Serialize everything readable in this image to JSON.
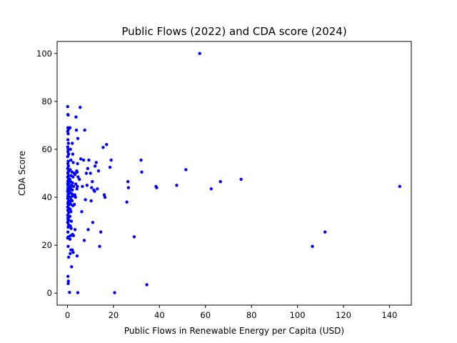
{
  "chart_data": {
    "type": "scatter",
    "title": "Public Flows (2022) and CDA score (2024)",
    "xlabel": "Public Flows in Renewable Energy per Capita (USD)",
    "ylabel": "CDA Score",
    "xlim": [
      -4.5,
      149.5
    ],
    "ylim": [
      -5,
      105
    ],
    "xticks": [
      0,
      20,
      40,
      60,
      80,
      100,
      120,
      140
    ],
    "yticks": [
      0,
      20,
      40,
      60,
      80,
      100
    ],
    "grid": false,
    "marker_color": "#0000ff",
    "points": [
      [
        0.1,
        77.8
      ],
      [
        0.2,
        74.5
      ],
      [
        0.3,
        74.3
      ],
      [
        0.2,
        69.0
      ],
      [
        0.4,
        68.2
      ],
      [
        0.1,
        67.5
      ],
      [
        0.3,
        66.5
      ],
      [
        0.2,
        64.0
      ],
      [
        0.4,
        62.5
      ],
      [
        0.1,
        61.0
      ],
      [
        0.3,
        60.0
      ],
      [
        0.2,
        59.0
      ],
      [
        0.5,
        58.0
      ],
      [
        0.1,
        57.0
      ],
      [
        0.3,
        55.0
      ],
      [
        0.2,
        54.0
      ],
      [
        0.4,
        53.0
      ],
      [
        0.1,
        52.0
      ],
      [
        0.6,
        51.0
      ],
      [
        0.3,
        50.5
      ],
      [
        0.2,
        50.0
      ],
      [
        0.5,
        49.0
      ],
      [
        0.1,
        48.5
      ],
      [
        0.4,
        48.0
      ],
      [
        0.3,
        47.0
      ],
      [
        0.2,
        46.5
      ],
      [
        0.6,
        46.0
      ],
      [
        0.1,
        45.5
      ],
      [
        0.4,
        45.0
      ],
      [
        0.3,
        44.5
      ],
      [
        0.5,
        44.0
      ],
      [
        0.2,
        43.5
      ],
      [
        0.7,
        43.0
      ],
      [
        0.1,
        42.5
      ],
      [
        0.3,
        41.5
      ],
      [
        0.4,
        41.0
      ],
      [
        0.2,
        40.5
      ],
      [
        0.6,
        40.0
      ],
      [
        0.1,
        39.5
      ],
      [
        0.5,
        38.5
      ],
      [
        0.3,
        38.0
      ],
      [
        0.2,
        37.5
      ],
      [
        0.4,
        37.0
      ],
      [
        0.1,
        36.0
      ],
      [
        0.6,
        35.5
      ],
      [
        0.3,
        35.0
      ],
      [
        0.2,
        34.5
      ],
      [
        0.5,
        33.5
      ],
      [
        0.1,
        32.5
      ],
      [
        0.4,
        32.0
      ],
      [
        0.3,
        31.5
      ],
      [
        0.2,
        31.0
      ],
      [
        0.6,
        30.5
      ],
      [
        0.1,
        29.5
      ],
      [
        0.5,
        28.5
      ],
      [
        0.3,
        27.5
      ],
      [
        0.2,
        25.5
      ],
      [
        0.4,
        23.5
      ],
      [
        0.1,
        23.0
      ],
      [
        0.3,
        19.5
      ],
      [
        0.5,
        15.0
      ],
      [
        0.2,
        7.0
      ],
      [
        0.4,
        5.0
      ],
      [
        0.3,
        4.0
      ],
      [
        0.9,
        0.3
      ],
      [
        0.3,
        30.0
      ],
      [
        1.1,
        69.0
      ],
      [
        1.3,
        60.0
      ],
      [
        1.5,
        55.5
      ],
      [
        1.2,
        51.5
      ],
      [
        1.6,
        49.0
      ],
      [
        1.0,
        47.5
      ],
      [
        1.4,
        46.5
      ],
      [
        1.7,
        45.0
      ],
      [
        1.2,
        44.0
      ],
      [
        1.5,
        43.5
      ],
      [
        1.1,
        42.0
      ],
      [
        1.8,
        41.5
      ],
      [
        1.3,
        40.0
      ],
      [
        1.6,
        39.0
      ],
      [
        1.0,
        38.0
      ],
      [
        1.4,
        37.0
      ],
      [
        1.2,
        35.0
      ],
      [
        1.5,
        34.0
      ],
      [
        1.1,
        32.0
      ],
      [
        1.7,
        30.0
      ],
      [
        1.3,
        28.0
      ],
      [
        1.6,
        27.0
      ],
      [
        1.4,
        24.0
      ],
      [
        1.1,
        22.5
      ],
      [
        1.5,
        18.0
      ],
      [
        1.2,
        16.5
      ],
      [
        1.8,
        11.0
      ],
      [
        2.1,
        62.5
      ],
      [
        2.3,
        58.0
      ],
      [
        2.5,
        54.5
      ],
      [
        2.0,
        50.5
      ],
      [
        2.4,
        48.5
      ],
      [
        2.2,
        46.0
      ],
      [
        2.6,
        44.5
      ],
      [
        2.1,
        43.0
      ],
      [
        2.5,
        41.0
      ],
      [
        2.3,
        40.5
      ],
      [
        2.0,
        38.5
      ],
      [
        2.4,
        36.5
      ],
      [
        2.2,
        24.5
      ],
      [
        2.6,
        24.0
      ],
      [
        2.1,
        18.0
      ],
      [
        2.5,
        17.0
      ],
      [
        3.0,
        50.0
      ],
      [
        3.3,
        49.5
      ],
      [
        3.6,
        45.5
      ],
      [
        3.2,
        41.0
      ],
      [
        3.5,
        40.0
      ],
      [
        3.0,
        37.0
      ],
      [
        3.3,
        26.5
      ],
      [
        3.7,
        73.5
      ],
      [
        3.9,
        68.0
      ],
      [
        4.0,
        51.0
      ],
      [
        4.2,
        50.5
      ],
      [
        4.3,
        44.5
      ],
      [
        4.1,
        43.5
      ],
      [
        4.5,
        64.5
      ],
      [
        4.4,
        54.0
      ],
      [
        4.6,
        48.5
      ],
      [
        4.2,
        15.5
      ],
      [
        4.5,
        0.2
      ],
      [
        5.5,
        77.5
      ],
      [
        5.2,
        47.5
      ],
      [
        5.8,
        56.0
      ],
      [
        6.2,
        34.0
      ],
      [
        6.5,
        44.5
      ],
      [
        7.5,
        68.0
      ],
      [
        7.0,
        55.5
      ],
      [
        7.8,
        39.0
      ],
      [
        7.3,
        22.0
      ],
      [
        8.2,
        50.0
      ],
      [
        8.5,
        45.0
      ],
      [
        8.8,
        52.0
      ],
      [
        9.0,
        26.5
      ],
      [
        9.3,
        55.5
      ],
      [
        10.0,
        50.0
      ],
      [
        10.3,
        38.5
      ],
      [
        10.5,
        44.0
      ],
      [
        10.8,
        46.5
      ],
      [
        11.0,
        29.5
      ],
      [
        11.5,
        43.0
      ],
      [
        11.8,
        42.5
      ],
      [
        12.0,
        53.0
      ],
      [
        12.5,
        54.5
      ],
      [
        13.0,
        43.5
      ],
      [
        13.5,
        51.0
      ],
      [
        14.0,
        19.5
      ],
      [
        14.5,
        25.5
      ],
      [
        15.5,
        60.8
      ],
      [
        16.0,
        41.0
      ],
      [
        16.3,
        40.0
      ],
      [
        17.0,
        62.0
      ],
      [
        18.5,
        52.5
      ],
      [
        19.0,
        55.5
      ],
      [
        20.5,
        0.2
      ],
      [
        25.8,
        38.0
      ],
      [
        26.3,
        46.5
      ],
      [
        26.5,
        44.0
      ],
      [
        29.0,
        23.5
      ],
      [
        32.0,
        55.5
      ],
      [
        32.3,
        50.5
      ],
      [
        34.5,
        3.5
      ],
      [
        38.5,
        44.5
      ],
      [
        38.8,
        44.0
      ],
      [
        47.5,
        45.0
      ],
      [
        51.5,
        51.5
      ],
      [
        57.5,
        100.0
      ],
      [
        62.5,
        43.5
      ],
      [
        66.5,
        46.5
      ],
      [
        75.5,
        47.5
      ],
      [
        106.5,
        19.5
      ],
      [
        112.0,
        25.5
      ],
      [
        144.5,
        44.5
      ]
    ]
  }
}
